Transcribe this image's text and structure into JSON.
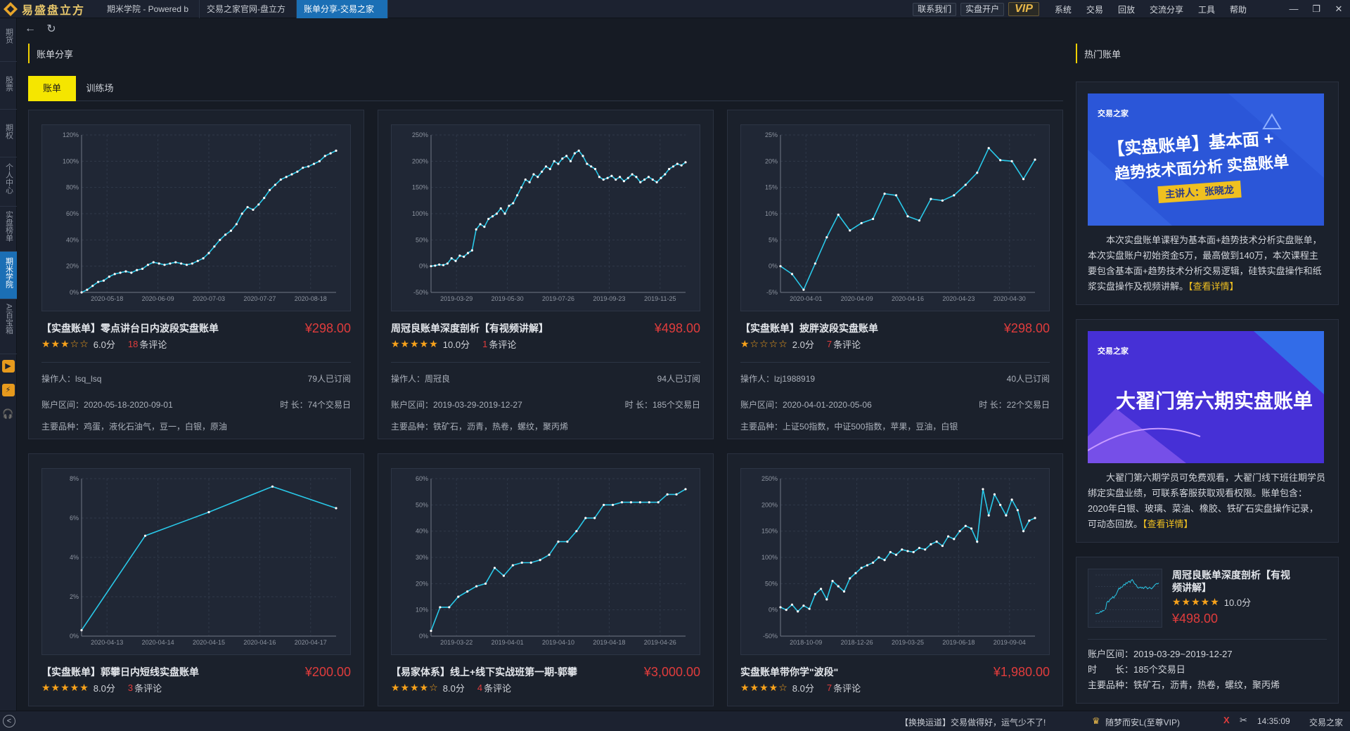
{
  "app": {
    "name": "易盛盘立方"
  },
  "tabs": [
    "期米学院 - Powered b",
    "交易之家官网-盘立方",
    "账单分享-交易之家"
  ],
  "top_buttons": {
    "contact": "联系我们",
    "open_account": "实盘开户",
    "vip": "VIP"
  },
  "menu": [
    "系统",
    "交易",
    "回放",
    "交流分享",
    "工具",
    "帮助"
  ],
  "window_controls": {
    "minimize": "—",
    "restore": "❐",
    "close": "✕"
  },
  "sidebar": [
    {
      "label": "期货"
    },
    {
      "label": "股票"
    },
    {
      "label": "期权"
    },
    {
      "label": "个人中心"
    },
    {
      "label": "实盘榜单"
    },
    {
      "label": "期米学院"
    },
    {
      "label": "AI百宝箱"
    }
  ],
  "sidebar_icons": [
    "▶",
    "⚡",
    "🎧"
  ],
  "nav": {
    "back": "←",
    "refresh": "↻"
  },
  "section": {
    "title": "账单分享",
    "hot_title": "热门账单"
  },
  "subtabs": [
    "账单",
    "训练场"
  ],
  "labels": {
    "operator": "操作人：",
    "range": "账户区间：",
    "duration": "时 长：",
    "products": "主要品种：",
    "comments": "条评论"
  },
  "cards": [
    {
      "title": "【实盘账单】零点讲台日内波段实盘账单",
      "price": "¥298.00",
      "stars": "★★★☆☆",
      "score": "6.0分",
      "comments": "18",
      "operator": "lsq_lsq",
      "subs": "79人已订阅",
      "range": "2020-05-18-2020-09-01",
      "duration": "74个交易日",
      "products": "鸡蛋，液化石油气，豆一，白银，原油",
      "chart": {
        "yticks": [
          "120%",
          "100%",
          "80%",
          "60%",
          "40%",
          "20%",
          "0%"
        ],
        "xticks": [
          "2020-05-18",
          "2020-06-09",
          "2020-07-03",
          "2020-07-27",
          "2020-08-18"
        ],
        "ymin": 0,
        "ymax": 120,
        "values": [
          0,
          2,
          5,
          8,
          9,
          12,
          14,
          15,
          16,
          15,
          17,
          18,
          21,
          23,
          22,
          21,
          22,
          23,
          22,
          21,
          22,
          24,
          26,
          30,
          35,
          40,
          44,
          47,
          52,
          60,
          65,
          63,
          67,
          72,
          78,
          82,
          86,
          88,
          90,
          92,
          95,
          96,
          98,
          100,
          104,
          106,
          108
        ]
      }
    },
    {
      "title": "周冠良账单深度剖析【有视频讲解】",
      "price": "¥498.00",
      "stars": "★★★★★",
      "score": "10.0分",
      "comments": "1",
      "operator": "周冠良",
      "subs": "94人已订阅",
      "range": "2019-03-29-2019-12-27",
      "duration": "185个交易日",
      "products": "铁矿石，沥青，热卷，螺纹，聚丙烯",
      "chart": {
        "yticks": [
          "250%",
          "200%",
          "150%",
          "100%",
          "50%",
          "0%",
          "-50%"
        ],
        "xticks": [
          "2019-03-29",
          "2019-05-30",
          "2019-07-26",
          "2019-09-23",
          "2019-11-25"
        ],
        "ymin": -50,
        "ymax": 250,
        "values": [
          0,
          1,
          3,
          2,
          5,
          15,
          10,
          20,
          18,
          25,
          30,
          70,
          80,
          75,
          90,
          95,
          100,
          110,
          100,
          115,
          120,
          135,
          150,
          165,
          160,
          175,
          170,
          180,
          190,
          185,
          200,
          195,
          205,
          210,
          200,
          215,
          220,
          210,
          195,
          190,
          185,
          170,
          165,
          168,
          172,
          165,
          170,
          162,
          168,
          175,
          170,
          160,
          165,
          170,
          165,
          160,
          168,
          175,
          185,
          190,
          195,
          192,
          198
        ]
      }
    },
    {
      "title": "【实盘账单】披胖波段实盘账单",
      "price": "¥298.00",
      "stars": "★☆☆☆☆",
      "score": "2.0分",
      "comments": "7",
      "operator": "lzj1988919",
      "subs": "40人已订阅",
      "range": "2020-04-01-2020-05-06",
      "duration": "22个交易日",
      "products": "上证50指数，中证500指数，苹果，豆油，白银",
      "chart": {
        "yticks": [
          "25%",
          "20%",
          "15%",
          "10%",
          "5%",
          "0%",
          "-5%"
        ],
        "xticks": [
          "2020-04-01",
          "2020-04-09",
          "2020-04-16",
          "2020-04-23",
          "2020-04-30"
        ],
        "ymin": -5,
        "ymax": 25,
        "values": [
          0,
          -1.5,
          -4.5,
          0.5,
          5.5,
          9.8,
          6.8,
          8.2,
          9.0,
          13.8,
          13.5,
          9.5,
          8.7,
          12.8,
          12.5,
          13.5,
          15.5,
          17.8,
          22.5,
          20.2,
          20.0,
          16.6,
          20.3
        ]
      }
    },
    {
      "title": "【实盘账单】郭攀日内短线实盘账单",
      "price": "¥200.00",
      "stars": "★★★★★",
      "score": "8.0分",
      "comments": "3",
      "chart": {
        "yticks": [
          "8%",
          "6%",
          "4%",
          "2%",
          "0%"
        ],
        "xticks": [
          "2020-04-13",
          "2020-04-14",
          "2020-04-15",
          "2020-04-16",
          "2020-04-17"
        ],
        "ymin": 0,
        "ymax": 8,
        "values": [
          0.3,
          5.1,
          6.3,
          7.6,
          6.5
        ]
      }
    },
    {
      "title": "【易家体系】线上+线下实战班第一期-郭攀",
      "price": "¥3,000.00",
      "stars": "★★★★☆",
      "score": "8.0分",
      "comments": "4",
      "chart": {
        "yticks": [
          "60%",
          "50%",
          "40%",
          "30%",
          "20%",
          "10%",
          "0%"
        ],
        "xticks": [
          "2019-03-22",
          "2019-04-01",
          "2019-04-10",
          "2019-04-18",
          "2019-04-26"
        ],
        "ymin": 0,
        "ymax": 60,
        "values": [
          2,
          11,
          11,
          15,
          17,
          19,
          20,
          26,
          23,
          27,
          28,
          28,
          29,
          31,
          36,
          36,
          40,
          45,
          45,
          50,
          50,
          51,
          51,
          51,
          51,
          51,
          54,
          54,
          56
        ]
      }
    },
    {
      "title": "实盘账单带你学\"波段\"",
      "price": "¥1,980.00",
      "stars": "★★★★☆",
      "score": "8.0分",
      "comments": "7",
      "chart": {
        "yticks": [
          "250%",
          "200%",
          "150%",
          "100%",
          "50%",
          "0%",
          "-50%"
        ],
        "xticks": [
          "2018-10-09",
          "2018-12-26",
          "2019-03-25",
          "2019-06-18",
          "2019-09-04"
        ],
        "ymin": -50,
        "ymax": 250,
        "values": [
          5,
          0,
          10,
          -3,
          8,
          2,
          30,
          40,
          20,
          55,
          45,
          35,
          60,
          70,
          80,
          85,
          90,
          100,
          95,
          110,
          105,
          115,
          112,
          110,
          118,
          115,
          125,
          130,
          122,
          140,
          135,
          150,
          160,
          155,
          130,
          230,
          180,
          220,
          200,
          180,
          210,
          190,
          150,
          170,
          175
        ]
      }
    }
  ],
  "hot": [
    {
      "banner": {
        "logo": "交易之家",
        "line1": "【实盘账单】基本面 +",
        "line2": "趋势技术面分析 实盘账单",
        "speaker": "主讲人：张晓龙"
      },
      "desc": "本次实盘账单课程为基本面+趋势技术分析实盘账单，本次实盘账户初始资金5万，最高做到140万，本次课程主要包含基本面+趋势技术分析交易逻辑，硅铁实盘操作和纸浆实盘操作及视频讲解。",
      "more": "【查看详情】"
    },
    {
      "banner": {
        "logo": "交易之家",
        "line1": "大翟门第六期实盘账单"
      },
      "desc": "大翟门第六期学员可免费观看，大翟门线下班往期学员绑定实盘业绩，可联系客服获取观看权限。账单包含：2020年白银、玻璃、菜油、橡胶、铁矿石实盘操作记录，可动态回放。",
      "more": "【查看详情】"
    }
  ],
  "mini": {
    "title": "周冠良账单深度剖析【有视频讲解】",
    "stars": "★★★★★",
    "score": "10.0分",
    "price": "¥498.00",
    "range_label": "账户区间：",
    "range": "2019-03-29~2019-12-27",
    "duration_label": "时　　长：",
    "duration": "185个交易日",
    "products_label": "主要品种：",
    "products": "铁矿石，沥青，热卷，螺纹，聚丙烯"
  },
  "status": {
    "back": "<",
    "message": "【换换运道】交易做得好，运气少不了!",
    "user": "随梦而安L(至尊VIP)",
    "time": "14:35:09",
    "brand": "交易之家"
  },
  "colors": {
    "accent": "#1b6fb5",
    "line": "#29c8e8",
    "price": "#e03c3c",
    "star": "#f7a21b",
    "highlight": "#f5e600"
  }
}
